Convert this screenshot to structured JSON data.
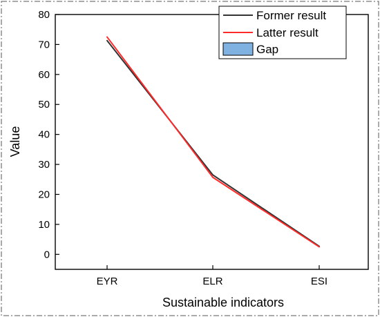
{
  "chart_data": {
    "type": "line",
    "title": "",
    "xlabel": "Sustainable indicators",
    "ylabel": "Value",
    "categories": [
      "EYR",
      "ELR",
      "ESI"
    ],
    "series": [
      {
        "name": "Former result",
        "values": [
          71.3,
          26.5,
          2.7
        ],
        "color": "#333333"
      },
      {
        "name": "Latter result",
        "values": [
          72.5,
          25.7,
          2.5
        ],
        "color": "#ff2b2b"
      }
    ],
    "gap": {
      "name": "Gap",
      "color": "#7fb2e0"
    },
    "ylim": [
      -5,
      80
    ],
    "yticks": [
      0,
      10,
      20,
      30,
      40,
      50,
      60,
      70,
      80
    ],
    "grid": false,
    "legend": "top-right",
    "frame": "dash-dot border"
  }
}
